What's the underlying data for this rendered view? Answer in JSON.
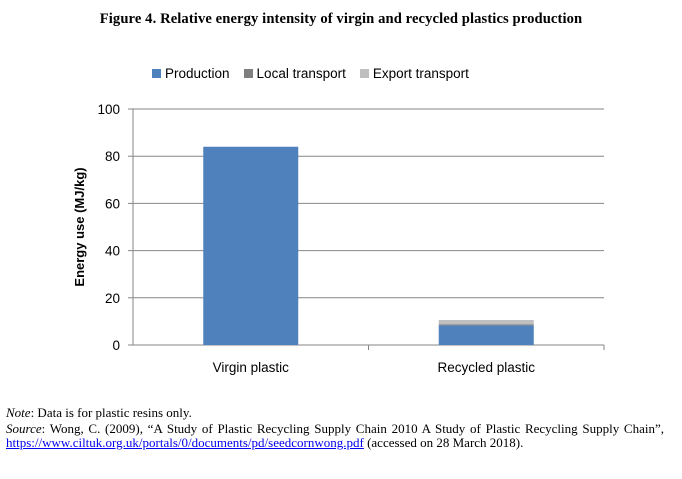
{
  "figure_title": "Figure 4. Relative energy intensity of virgin and recycled plastics production",
  "colors": {
    "production": "#4f81bd",
    "local_transport": "#7f7f7f",
    "export_transport": "#bfbfbf",
    "grid": "#868686"
  },
  "chart_data": {
    "type": "bar",
    "stacked": true,
    "categories": [
      "Virgin plastic",
      "Recycled plastic"
    ],
    "series": [
      {
        "name": "Production",
        "values": [
          84,
          8.3
        ]
      },
      {
        "name": "Local transport",
        "values": [
          0,
          0.5
        ]
      },
      {
        "name": "Export transport",
        "values": [
          0,
          1.8
        ]
      }
    ],
    "ylabel": "Energy use (MJ/kg)",
    "xlabel": "",
    "ylim": [
      0,
      100
    ],
    "yticks": [
      0,
      20,
      40,
      60,
      80,
      100
    ],
    "grid": true,
    "legend_position": "top"
  },
  "note": {
    "label": "Note",
    "text": ": Data is for plastic resins only."
  },
  "source": {
    "label": "Source",
    "text_before": ": Wong, C. (2009), “A Study of Plastic Recycling Supply Chain 2010 A Study of Plastic Recycling Supply Chain”,",
    "link": "https://www.ciltuk.org.uk/portals/0/documents/pd/seedcornwong.pdf",
    "text_after": "(accessed on 28 March 2018)."
  }
}
